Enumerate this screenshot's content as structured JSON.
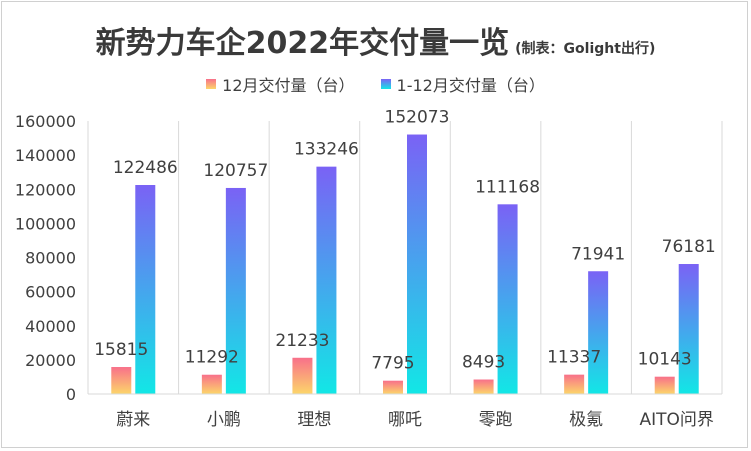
{
  "chart_data": {
    "type": "bar",
    "title": "新势力车企2022年交付量一览",
    "subtitle": "(制表：Golight出行)",
    "xlabel": "",
    "ylabel": "",
    "ylim": [
      0,
      160000
    ],
    "yticks": [
      0,
      20000,
      40000,
      60000,
      80000,
      100000,
      120000,
      140000,
      160000
    ],
    "grid": "vertical-category-separators",
    "legend_position": "top",
    "categories": [
      "蔚来",
      "小鹏",
      "理想",
      "哪吒",
      "零跑",
      "极氪",
      "AITO问界"
    ],
    "series": [
      {
        "name": "12月交付量（台）",
        "values": [
          15815,
          11292,
          21233,
          7795,
          8493,
          11337,
          10143
        ],
        "color_top": "#f8708a",
        "color_bottom": "#fcd66a"
      },
      {
        "name": "1-12月交付量（台）",
        "values": [
          122486,
          120757,
          133246,
          152073,
          111168,
          71941,
          76181
        ],
        "color_top": "#7a62f5",
        "color_bottom": "#12e7e6"
      }
    ],
    "data_labels": true
  }
}
